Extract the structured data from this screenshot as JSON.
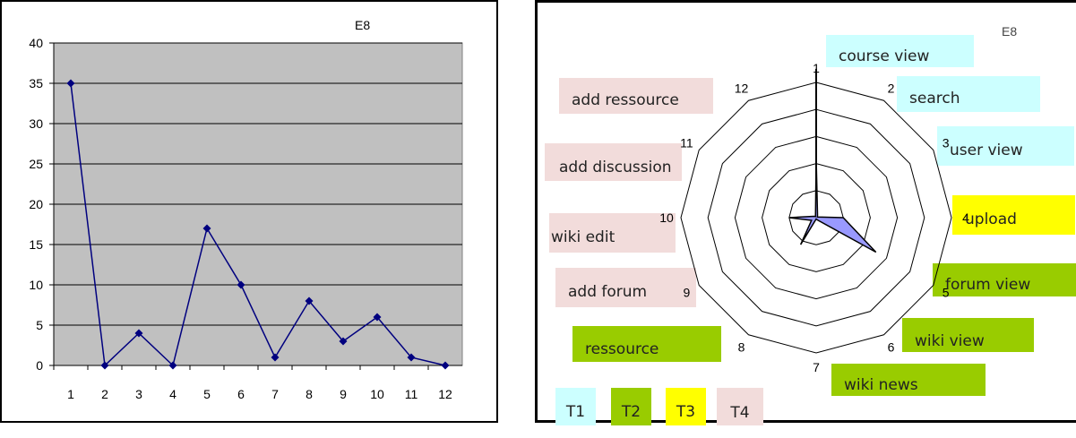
{
  "chart_data": [
    {
      "type": "line",
      "title": "E8",
      "categories": [
        "1",
        "2",
        "3",
        "4",
        "5",
        "6",
        "7",
        "8",
        "9",
        "10",
        "11",
        "12"
      ],
      "values": [
        35,
        0,
        4,
        0,
        17,
        10,
        1,
        8,
        3,
        6,
        1,
        0
      ],
      "ylim": [
        0,
        40
      ],
      "yticks": [
        "0",
        "5",
        "10",
        "15",
        "20",
        "25",
        "30",
        "35",
        "40"
      ],
      "grid": true,
      "colors": {
        "line": "#00007f",
        "plot_bg": "#c0c0c0",
        "grid": "#000000"
      }
    },
    {
      "type": "radar",
      "title": "E8",
      "axes": [
        "1",
        "2",
        "3",
        "4",
        "5",
        "6",
        "7",
        "8",
        "9",
        "10",
        "11",
        "12"
      ],
      "series_shape": [
        {
          "axis": "1",
          "value": 2.2
        },
        {
          "axis": "2",
          "value": 0.1
        },
        {
          "axis": "3",
          "value": 0.05
        },
        {
          "axis": "4",
          "value": 1.0
        },
        {
          "axis": "5",
          "value": 2.55
        },
        {
          "axis": "6",
          "value": 0.1
        },
        {
          "axis": "7",
          "value": 0.05
        },
        {
          "axis": "8",
          "value": 1.15
        },
        {
          "axis": "9",
          "value": 0.2
        },
        {
          "axis": "10",
          "value": 1.0
        },
        {
          "axis": "11",
          "value": 0.1
        },
        {
          "axis": "12",
          "value": 0.05
        }
      ],
      "spike_axis": "1",
      "spike_value": 5.5,
      "rings": 5,
      "colors": {
        "fill": "#9999ff",
        "stroke": "#000000",
        "grid": "#000000"
      },
      "activities": [
        {
          "label": "course view",
          "group": "T1"
        },
        {
          "label": "search",
          "group": "T1"
        },
        {
          "label": "user view",
          "group": "T1"
        },
        {
          "label": "upload",
          "group": "T3"
        },
        {
          "label": "forum view",
          "group": "T2"
        },
        {
          "label": "wiki view",
          "group": "T2"
        },
        {
          "label": "wiki news",
          "group": "T2"
        },
        {
          "label": "ressource",
          "group": "T2"
        },
        {
          "label": "add forum",
          "group": "T4"
        },
        {
          "label": "wiki edit",
          "group": "T4"
        },
        {
          "label": "add discussion",
          "group": "T4"
        },
        {
          "label": "add ressource",
          "group": "T4"
        }
      ],
      "legend": [
        {
          "label": "T1",
          "color": "#ccffff"
        },
        {
          "label": "T2",
          "color": "#99cc00"
        },
        {
          "label": "T3",
          "color": "#ffff00"
        },
        {
          "label": "T4",
          "color": "#f2dcdb"
        }
      ]
    }
  ]
}
